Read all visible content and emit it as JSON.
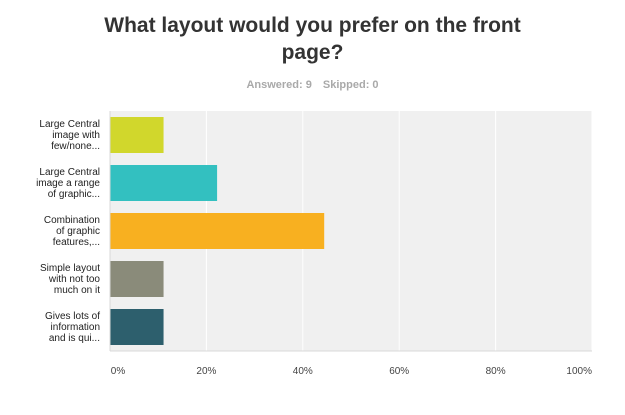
{
  "header": {
    "title_line1": "What layout would you prefer on the front",
    "title_line2": "page?",
    "answered": "Answered: 9",
    "skipped": "Skipped: 0"
  },
  "chart_data": {
    "type": "bar",
    "orientation": "horizontal",
    "categories": [
      [
        "Large Central",
        "image with",
        "few/none..."
      ],
      [
        "Large Central",
        "image a range",
        "of graphic..."
      ],
      [
        "Combination",
        "of graphic",
        "features,..."
      ],
      [
        "Simple layout",
        "with not too",
        "much on it"
      ],
      [
        "Gives lots of",
        "information",
        "and is qui..."
      ]
    ],
    "values": [
      11.11,
      22.22,
      44.44,
      11.11,
      11.11
    ],
    "colors": [
      "#d1d72c",
      "#33c0c0",
      "#f8b020",
      "#8a8b7a",
      "#2d5f6d"
    ],
    "xlim": [
      0,
      100
    ],
    "xticks": [
      "0%",
      "20%",
      "40%",
      "60%",
      "80%",
      "100%"
    ],
    "grid": true,
    "plot_background": "#f0f0f0",
    "grid_color": "#ffffff"
  }
}
